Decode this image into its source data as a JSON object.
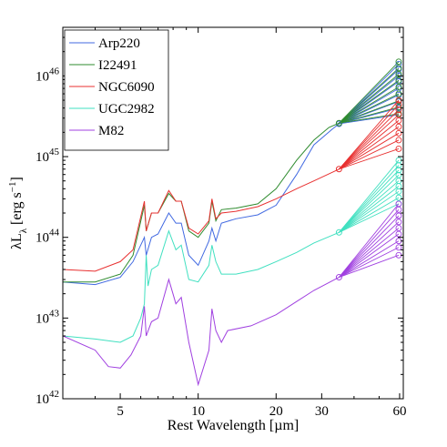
{
  "chart_data": {
    "type": "line",
    "xlabel": "Rest Wavelength [µm]",
    "ylabel": "λLλ [erg s−1]",
    "x_scale": "log",
    "y_scale": "log",
    "xlim": [
      3.0,
      62
    ],
    "ylim": [
      1e+42,
      4e+46
    ],
    "x_ticks": [
      5,
      10,
      20,
      30,
      60
    ],
    "x_tick_labels": [
      "5",
      "10",
      "20",
      "30",
      "60"
    ],
    "y_ticks": [
      1e+42,
      1e+43,
      1e+44,
      1e+45,
      1e+46
    ],
    "y_tick_labels": [
      {
        "base": "10",
        "exp": "42"
      },
      {
        "base": "10",
        "exp": "43"
      },
      {
        "base": "10",
        "exp": "44"
      },
      {
        "base": "10",
        "exp": "45"
      },
      {
        "base": "10",
        "exp": "46"
      }
    ],
    "legend_position": "top-left",
    "grid": false,
    "series": [
      {
        "name": "Arp220",
        "color": "#4169e1",
        "points": [
          [
            3.0,
            2.8e+43
          ],
          [
            4.0,
            2.6e+43
          ],
          [
            5.0,
            3.2e+43
          ],
          [
            5.6,
            5e+43
          ],
          [
            6.2,
            1e+44
          ],
          [
            6.3,
            6e+43
          ],
          [
            6.6,
            1e+44
          ],
          [
            7.0,
            1.1e+44
          ],
          [
            7.7,
            2e+44
          ],
          [
            8.2,
            1.5e+44
          ],
          [
            8.6,
            1.5e+44
          ],
          [
            9.2,
            6e+43
          ],
          [
            10.0,
            4.5e+43
          ],
          [
            11.0,
            9e+43
          ],
          [
            11.3,
            1.3e+44
          ],
          [
            11.7,
            9e+43
          ],
          [
            12.3,
            1.5e+44
          ],
          [
            14.0,
            1.7e+44
          ],
          [
            17.0,
            1.9e+44
          ],
          [
            20.0,
            2.5e+44
          ],
          [
            24.0,
            6e+44
          ],
          [
            28.0,
            1.4e+45
          ],
          [
            33.0,
            2.2e+45
          ],
          [
            35.0,
            2.55e+45
          ]
        ],
        "anchor": [
          35.0,
          2.55e+45
        ],
        "fan_endpoints": [
          1.4e+46,
          1.2e+46,
          1e+46,
          8.5e+45,
          7e+45,
          5.8e+45,
          4.8e+45,
          4e+45,
          3.3e+45
        ]
      },
      {
        "name": "I22491",
        "color": "#2e8b2e",
        "points": [
          [
            3.0,
            2.8e+43
          ],
          [
            4.0,
            2.8e+43
          ],
          [
            5.0,
            3.5e+43
          ],
          [
            5.6,
            6e+43
          ],
          [
            6.2,
            2.5e+44
          ],
          [
            6.3,
            1.2e+44
          ],
          [
            6.6,
            2e+44
          ],
          [
            7.0,
            2e+44
          ],
          [
            7.7,
            3.5e+44
          ],
          [
            8.2,
            2.8e+44
          ],
          [
            8.6,
            2.8e+44
          ],
          [
            9.2,
            1.2e+44
          ],
          [
            10.0,
            1e+44
          ],
          [
            11.0,
            1.5e+44
          ],
          [
            11.3,
            2.8e+44
          ],
          [
            11.7,
            1.6e+44
          ],
          [
            12.3,
            2.2e+44
          ],
          [
            14.0,
            2.3e+44
          ],
          [
            17.0,
            2.6e+44
          ],
          [
            20.0,
            4e+44
          ],
          [
            24.0,
            9e+44
          ],
          [
            28.0,
            1.6e+45
          ],
          [
            32.0,
            2.3e+45
          ],
          [
            35.0,
            2.6e+45
          ]
        ],
        "anchor": [
          35.0,
          2.6e+45
        ],
        "fan_endpoints": [
          1.5e+46,
          1.25e+46,
          1.05e+46,
          8.8e+45,
          7.3e+45,
          6e+45,
          4.9e+45,
          4.1e+45,
          3.4e+45
        ]
      },
      {
        "name": "NGC6090",
        "color": "#e83030",
        "points": [
          [
            3.0,
            4e+43
          ],
          [
            4.0,
            3.8e+43
          ],
          [
            5.0,
            5e+43
          ],
          [
            5.6,
            7e+43
          ],
          [
            6.2,
            2.8e+44
          ],
          [
            6.3,
            1.2e+44
          ],
          [
            6.6,
            2e+44
          ],
          [
            7.0,
            2e+44
          ],
          [
            7.7,
            3.8e+44
          ],
          [
            8.2,
            2.8e+44
          ],
          [
            8.6,
            2.8e+44
          ],
          [
            9.2,
            1.3e+44
          ],
          [
            10.0,
            1.1e+44
          ],
          [
            11.0,
            1.6e+44
          ],
          [
            11.3,
            3e+44
          ],
          [
            11.7,
            1.7e+44
          ],
          [
            12.3,
            2e+44
          ],
          [
            14.0,
            2.1e+44
          ],
          [
            17.0,
            2.4e+44
          ],
          [
            20.0,
            3e+44
          ],
          [
            24.0,
            4e+44
          ],
          [
            28.0,
            5e+44
          ],
          [
            35.0,
            7e+44
          ]
        ],
        "anchor": [
          35.0,
          7e+44
        ],
        "fan_endpoints": [
          5e+45,
          4.4e+45,
          3.8e+45,
          3.3e+45,
          2.8e+45,
          2.35e+45,
          1.95e+45,
          1.6e+45,
          1.25e+45
        ]
      },
      {
        "name": "UGC2982",
        "color": "#40e0c0",
        "points": [
          [
            3.0,
            6e+42
          ],
          [
            4.0,
            5.5e+42
          ],
          [
            5.0,
            5e+42
          ],
          [
            5.6,
            6e+42
          ],
          [
            6.0,
            1e+43
          ],
          [
            6.2,
            1.5e+43
          ],
          [
            6.3,
            6e+43
          ],
          [
            6.4,
            2.5e+43
          ],
          [
            6.6,
            4e+43
          ],
          [
            7.0,
            4.5e+43
          ],
          [
            7.7,
            1.2e+44
          ],
          [
            8.2,
            7e+43
          ],
          [
            8.6,
            8e+43
          ],
          [
            9.2,
            3e+43
          ],
          [
            10.0,
            2.8e+43
          ],
          [
            11.0,
            4.5e+43
          ],
          [
            11.3,
            8e+43
          ],
          [
            11.7,
            5e+43
          ],
          [
            12.3,
            3.5e+43
          ],
          [
            14.0,
            3.5e+43
          ],
          [
            17.0,
            4e+43
          ],
          [
            20.0,
            5e+43
          ],
          [
            24.0,
            6.5e+43
          ],
          [
            28.0,
            8.5e+43
          ],
          [
            35.0,
            1.15e+44
          ]
        ],
        "anchor": [
          35.0,
          1.15e+44
        ],
        "fan_endpoints": [
          9e+44,
          7.8e+44,
          6.8e+44,
          5.9e+44,
          5e+44,
          4.3e+44,
          3.7e+44,
          3.1e+44,
          2.6e+44
        ]
      },
      {
        "name": "M82",
        "color": "#a040e0",
        "points": [
          [
            3.0,
            6e+42
          ],
          [
            4.0,
            4e+42
          ],
          [
            4.5,
            2.5e+42
          ],
          [
            5.0,
            2.4e+42
          ],
          [
            5.5,
            3.5e+42
          ],
          [
            6.0,
            6e+42
          ],
          [
            6.2,
            1.4e+43
          ],
          [
            6.3,
            6e+42
          ],
          [
            6.6,
            9e+42
          ],
          [
            7.0,
            1e+43
          ],
          [
            7.7,
            3e+43
          ],
          [
            8.2,
            1.5e+43
          ],
          [
            8.6,
            1.8e+43
          ],
          [
            9.2,
            5e+42
          ],
          [
            10.0,
            1.5e+42
          ],
          [
            11.0,
            4e+42
          ],
          [
            11.3,
            1.3e+43
          ],
          [
            11.7,
            7e+42
          ],
          [
            12.3,
            5e+42
          ],
          [
            13.0,
            7e+42
          ],
          [
            16.0,
            8e+42
          ],
          [
            20.0,
            1.1e+43
          ],
          [
            24.0,
            1.6e+43
          ],
          [
            28.0,
            2.2e+43
          ],
          [
            35.0,
            3.2e+43
          ]
        ],
        "anchor": [
          35.0,
          3.2e+43
        ],
        "fan_endpoints": [
          2.6e+44,
          2.2e+44,
          1.85e+44,
          1.55e+44,
          1.3e+44,
          1.1e+44,
          9e+43,
          7.5e+43,
          6e+43
        ]
      }
    ],
    "fan_x": 60
  }
}
